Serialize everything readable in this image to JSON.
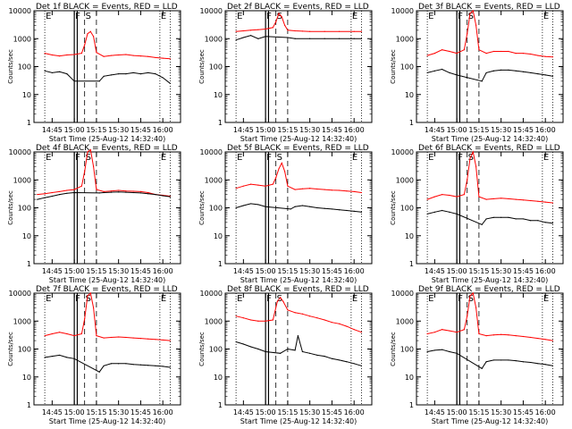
{
  "figure": {
    "background": "#ffffff",
    "xlabel": "Start Time (25-Aug-12 14:32:40)",
    "ylabel": "Counts/sec",
    "x_ticks": [
      "14:45",
      "15:00",
      "15:15",
      "15:30",
      "15:45",
      "16:00"
    ],
    "y_ticks": [
      "1",
      "10",
      "100",
      "1000",
      "10000"
    ],
    "colors": {
      "events": "#000000",
      "lld": "#ff0000",
      "axes": "#000000"
    }
  },
  "chart_data": [
    {
      "type": "line",
      "title": "Det 1f BLACK = Events, RED = LLD",
      "xlabel": "Start Time (25-Aug-12 14:32:40)",
      "ylabel": "Counts/sec",
      "xlim": [
        "14:32:40",
        "16:12"
      ],
      "ylim": [
        1,
        10000
      ],
      "yscale": "log",
      "markers": [
        "E",
        "F",
        "S",
        "E"
      ],
      "series": [
        {
          "x": [
            "14:40",
            "14:45",
            "14:50",
            "14:55",
            "15:00",
            "15:05",
            "15:07",
            "15:09",
            "15:11",
            "15:13",
            "15:15",
            "15:20",
            "15:25",
            "15:30",
            "15:35",
            "15:40",
            "15:45",
            "15:50",
            "15:55",
            "16:00",
            "16:05"
          ],
          "y": [
            300,
            260,
            240,
            260,
            270,
            300,
            600,
            1500,
            1800,
            1200,
            320,
            230,
            250,
            260,
            270,
            250,
            240,
            230,
            210,
            200,
            190
          ]
        },
        {
          "x": [
            "14:40",
            "14:45",
            "14:50",
            "14:55",
            "15:00",
            "15:17",
            "15:20",
            "15:25",
            "15:30",
            "15:35",
            "15:40",
            "15:45",
            "15:50",
            "15:55",
            "16:00",
            "16:05"
          ],
          "y": [
            70,
            60,
            65,
            55,
            30,
            30,
            45,
            50,
            55,
            55,
            60,
            55,
            60,
            55,
            40,
            25
          ]
        }
      ]
    },
    {
      "type": "line",
      "title": "Det 2f BLACK = Events, RED = LLD",
      "xlabel": "Start Time (25-Aug-12 14:32:40)",
      "ylabel": "Counts/sec",
      "xlim": [
        "14:32:40",
        "16:12"
      ],
      "ylim": [
        1,
        10000
      ],
      "yscale": "log",
      "markers": [
        "E",
        "F",
        "S",
        "E"
      ],
      "series": [
        {
          "x": [
            "14:40",
            "14:45",
            "14:50",
            "14:55",
            "15:00",
            "15:05",
            "15:07",
            "15:09",
            "15:11",
            "15:13",
            "15:15",
            "15:20",
            "15:25",
            "15:30",
            "15:40",
            "15:50",
            "16:00",
            "16:05"
          ],
          "y": [
            1800,
            1900,
            2000,
            2100,
            2200,
            2500,
            4000,
            8000,
            6000,
            3000,
            2000,
            1900,
            1850,
            1800,
            1800,
            1800,
            1800,
            1800
          ]
        },
        {
          "x": [
            "14:40",
            "14:45",
            "14:50",
            "14:55",
            "15:00",
            "15:15",
            "15:20",
            "15:30",
            "15:40",
            "15:50",
            "16:00",
            "16:05"
          ],
          "y": [
            900,
            1100,
            1300,
            1000,
            1200,
            1100,
            1000,
            1000,
            1000,
            1000,
            1000,
            1000
          ]
        }
      ]
    },
    {
      "type": "line",
      "title": "Det 3f BLACK = Events, RED = LLD",
      "xlabel": "Start Time (25-Aug-12 14:32:40)",
      "ylabel": "Counts/sec",
      "xlim": [
        "14:32:40",
        "16:12"
      ],
      "ylim": [
        1,
        10000
      ],
      "yscale": "log",
      "markers": [
        "E",
        "F",
        "S",
        "E"
      ],
      "series": [
        {
          "x": [
            "14:40",
            "14:45",
            "14:50",
            "14:55",
            "15:00",
            "15:05",
            "15:07",
            "15:09",
            "15:11",
            "15:13",
            "15:15",
            "15:20",
            "15:25",
            "15:30",
            "15:35",
            "15:40",
            "15:45",
            "15:50",
            "15:55",
            "16:00",
            "16:05"
          ],
          "y": [
            250,
            300,
            400,
            350,
            300,
            400,
            1500,
            8000,
            10000,
            3000,
            400,
            300,
            350,
            350,
            350,
            300,
            300,
            280,
            250,
            230,
            220
          ]
        },
        {
          "x": [
            "14:40",
            "14:45",
            "14:50",
            "14:55",
            "15:00",
            "15:17",
            "15:20",
            "15:25",
            "15:30",
            "15:35",
            "15:40",
            "15:45",
            "15:50",
            "15:55",
            "16:00",
            "16:05"
          ],
          "y": [
            60,
            70,
            80,
            60,
            50,
            30,
            60,
            70,
            75,
            75,
            70,
            65,
            60,
            55,
            50,
            45
          ]
        }
      ]
    },
    {
      "type": "line",
      "title": "Det 4f BLACK = Events, RED = LLD",
      "xlabel": "Start Time (25-Aug-12 14:32:40)",
      "ylabel": "Counts/sec",
      "xlim": [
        "14:32:40",
        "16:12"
      ],
      "ylim": [
        1,
        10000
      ],
      "yscale": "log",
      "markers": [
        "E",
        "F",
        "S",
        "E"
      ],
      "series": [
        {
          "x": [
            "14:35",
            "14:40",
            "14:45",
            "14:50",
            "14:55",
            "15:00",
            "15:05",
            "15:07",
            "15:09",
            "15:11",
            "15:13",
            "15:15",
            "15:20",
            "15:25",
            "15:30",
            "15:35",
            "15:40",
            "15:45",
            "15:50",
            "15:55",
            "16:00",
            "16:05"
          ],
          "y": [
            300,
            320,
            350,
            380,
            420,
            450,
            600,
            2000,
            10000,
            12000,
            3000,
            450,
            380,
            400,
            420,
            400,
            390,
            380,
            350,
            300,
            280,
            260
          ]
        },
        {
          "x": [
            "14:35",
            "14:40",
            "14:45",
            "14:50",
            "14:55",
            "15:00",
            "15:17",
            "15:20",
            "15:25",
            "15:30",
            "15:35",
            "15:40",
            "15:45",
            "15:50",
            "15:55",
            "16:00",
            "16:05"
          ],
          "y": [
            200,
            230,
            260,
            300,
            330,
            350,
            340,
            350,
            360,
            370,
            360,
            350,
            340,
            320,
            300,
            270,
            250
          ]
        }
      ]
    },
    {
      "type": "line",
      "title": "Det 5f BLACK = Events, RED = LLD",
      "xlabel": "Start Time (25-Aug-12 14:32:40)",
      "ylabel": "Counts/sec",
      "xlim": [
        "14:32:40",
        "16:12"
      ],
      "ylim": [
        1,
        10000
      ],
      "yscale": "log",
      "markers": [
        "E",
        "F",
        "S",
        "E"
      ],
      "series": [
        {
          "x": [
            "14:40",
            "14:45",
            "14:50",
            "14:55",
            "15:00",
            "15:05",
            "15:07",
            "15:09",
            "15:11",
            "15:13",
            "15:15",
            "15:20",
            "15:25",
            "15:30",
            "15:35",
            "15:40",
            "15:45",
            "15:50",
            "15:55",
            "16:00",
            "16:05"
          ],
          "y": [
            500,
            600,
            700,
            650,
            600,
            700,
            1200,
            2500,
            4000,
            2000,
            600,
            450,
            480,
            500,
            470,
            450,
            430,
            420,
            400,
            380,
            350
          ]
        },
        {
          "x": [
            "14:40",
            "14:45",
            "14:50",
            "14:55",
            "15:00",
            "15:17",
            "15:20",
            "15:25",
            "15:30",
            "15:35",
            "15:40",
            "15:45",
            "15:50",
            "15:55",
            "16:00",
            "16:05"
          ],
          "y": [
            100,
            120,
            140,
            130,
            110,
            90,
            110,
            120,
            110,
            100,
            95,
            90,
            85,
            80,
            75,
            70
          ]
        }
      ]
    },
    {
      "type": "line",
      "title": "Det 6f BLACK = Events, RED = LLD",
      "xlabel": "Start Time (25-Aug-12 14:32:40)",
      "ylabel": "Counts/sec",
      "xlim": [
        "14:32:40",
        "16:12"
      ],
      "ylim": [
        1,
        10000
      ],
      "yscale": "log",
      "markers": [
        "E",
        "F",
        "S",
        "E"
      ],
      "series": [
        {
          "x": [
            "14:40",
            "14:45",
            "14:50",
            "14:55",
            "15:00",
            "15:05",
            "15:07",
            "15:09",
            "15:11",
            "15:13",
            "15:15",
            "15:20",
            "15:25",
            "15:30",
            "15:35",
            "15:40",
            "15:45",
            "15:50",
            "15:55",
            "16:00",
            "16:05"
          ],
          "y": [
            200,
            250,
            300,
            280,
            250,
            300,
            1000,
            6000,
            10000,
            3000,
            250,
            200,
            210,
            220,
            210,
            200,
            190,
            180,
            170,
            160,
            150
          ]
        },
        {
          "x": [
            "14:40",
            "14:45",
            "14:50",
            "14:55",
            "15:00",
            "15:17",
            "15:20",
            "15:25",
            "15:30",
            "15:35",
            "15:40",
            "15:45",
            "15:50",
            "15:55",
            "16:00",
            "16:05"
          ],
          "y": [
            60,
            70,
            80,
            70,
            60,
            25,
            40,
            45,
            45,
            45,
            40,
            40,
            35,
            35,
            30,
            28
          ]
        }
      ]
    },
    {
      "type": "line",
      "title": "Det 7f BLACK = Events, RED = LLD",
      "xlabel": "Start Time (25-Aug-12 14:32:40)",
      "ylabel": "Counts/sec",
      "xlim": [
        "14:32:40",
        "16:12"
      ],
      "ylim": [
        1,
        10000
      ],
      "yscale": "log",
      "markers": [
        "E",
        "F",
        "S",
        "E"
      ],
      "series": [
        {
          "x": [
            "14:40",
            "14:45",
            "14:50",
            "14:55",
            "15:00",
            "15:05",
            "15:07",
            "15:09",
            "15:11",
            "15:13",
            "15:15",
            "15:20",
            "15:25",
            "15:30",
            "15:35",
            "15:40",
            "15:45",
            "15:50",
            "15:55",
            "16:00",
            "16:05"
          ],
          "y": [
            300,
            350,
            400,
            350,
            300,
            350,
            1200,
            8000,
            10000,
            3000,
            300,
            250,
            260,
            270,
            260,
            250,
            240,
            230,
            220,
            210,
            200
          ]
        },
        {
          "x": [
            "14:40",
            "14:45",
            "14:50",
            "14:55",
            "15:00",
            "15:17",
            "15:20",
            "15:25",
            "15:30",
            "15:35",
            "15:40",
            "15:45",
            "15:50",
            "15:55",
            "16:00",
            "16:05"
          ],
          "y": [
            50,
            55,
            60,
            50,
            45,
            15,
            25,
            30,
            30,
            30,
            28,
            27,
            26,
            25,
            24,
            22
          ]
        }
      ]
    },
    {
      "type": "line",
      "title": "Det 8f BLACK = Events, RED = LLD",
      "xlabel": "Start Time (25-Aug-12 14:32:40)",
      "ylabel": "Counts/sec",
      "xlim": [
        "14:32:40",
        "16:12"
      ],
      "ylim": [
        1,
        10000
      ],
      "yscale": "log",
      "markers": [
        "E",
        "F",
        "S",
        "E"
      ],
      "series": [
        {
          "x": [
            "14:40",
            "14:45",
            "14:50",
            "14:55",
            "15:00",
            "15:05",
            "15:08",
            "15:10",
            "15:12",
            "15:15",
            "15:20",
            "15:25",
            "15:30",
            "15:35",
            "15:40",
            "15:45",
            "15:50",
            "15:55",
            "16:00",
            "16:05"
          ],
          "y": [
            1500,
            1300,
            1100,
            1000,
            1000,
            1100,
            5000,
            7000,
            5000,
            2500,
            2000,
            1800,
            1500,
            1300,
            1100,
            900,
            800,
            650,
            500,
            400
          ]
        },
        {
          "x": [
            "14:40",
            "14:45",
            "14:50",
            "14:55",
            "15:00",
            "15:10",
            "15:15",
            "15:20",
            "15:22",
            "15:25",
            "15:30",
            "15:35",
            "15:40",
            "15:45",
            "15:50",
            "15:55",
            "16:00",
            "16:05"
          ],
          "y": [
            180,
            150,
            120,
            100,
            80,
            70,
            100,
            90,
            300,
            80,
            70,
            60,
            55,
            45,
            40,
            35,
            30,
            25
          ]
        }
      ]
    },
    {
      "type": "line",
      "title": "Det 9f BLACK = Events, RED = LLD",
      "xlabel": "Start Time (25-Aug-12 14:32:40)",
      "ylabel": "Counts/sec",
      "xlim": [
        "14:32:40",
        "16:12"
      ],
      "ylim": [
        1,
        10000
      ],
      "yscale": "log",
      "markers": [
        "E",
        "F",
        "S",
        "E"
      ],
      "series": [
        {
          "x": [
            "14:40",
            "14:45",
            "14:50",
            "14:55",
            "15:00",
            "15:05",
            "15:07",
            "15:09",
            "15:11",
            "15:13",
            "15:15",
            "15:20",
            "15:25",
            "15:30",
            "15:35",
            "15:40",
            "15:45",
            "15:50",
            "15:55",
            "16:00",
            "16:05"
          ],
          "y": [
            350,
            400,
            500,
            450,
            400,
            500,
            1500,
            8000,
            10000,
            3000,
            350,
            300,
            320,
            330,
            320,
            300,
            280,
            260,
            240,
            220,
            200
          ]
        },
        {
          "x": [
            "14:40",
            "14:45",
            "14:50",
            "14:55",
            "15:00",
            "15:17",
            "15:20",
            "15:25",
            "15:30",
            "15:35",
            "15:40",
            "15:45",
            "15:50",
            "15:55",
            "16:00",
            "16:05"
          ],
          "y": [
            80,
            90,
            95,
            80,
            70,
            20,
            35,
            40,
            40,
            40,
            38,
            35,
            33,
            30,
            28,
            25
          ]
        }
      ]
    }
  ]
}
